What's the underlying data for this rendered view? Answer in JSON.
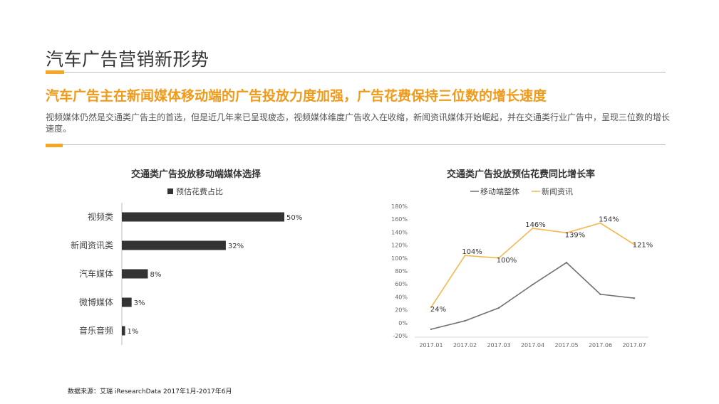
{
  "slide": {
    "title": "汽车广告营销新形势",
    "headline": "汽车广告主在新闻媒体移动端的广告投放力度加强，广告花费保持三位数的增长速度",
    "summary": "视频媒体仍然是交通类广告主的首选，但是近几年来已呈现疲态，视频媒体维度广告收入在收缩，新闻资讯媒体开始崛起，并在交通类行业广告中，呈现三位数的增长速度。",
    "source": "数据来源：艾瑞 iResearchData 2017年1月-2017年6月",
    "accent_color": "#f5a623",
    "headline_color": "#f09a1a"
  },
  "chart_data": [
    {
      "type": "bar",
      "orientation": "horizontal",
      "title": "交通类广告投放移动端媒体选择",
      "legend": "top",
      "categories": [
        "视频类",
        "新闻资讯类",
        "汽车媒体",
        "微博媒体",
        "音乐音频"
      ],
      "series": [
        {
          "name": "预估花费占比",
          "values": [
            50,
            32,
            8,
            3,
            1
          ],
          "labels": [
            "50%",
            "32%",
            "8%",
            "3%",
            "1%"
          ],
          "color": "#333333"
        }
      ],
      "xlim": [
        0,
        50
      ]
    },
    {
      "type": "line",
      "title": "交通类广告投放预估花费同比增长率",
      "legend": "top",
      "categories": [
        "2017.01",
        "2017.02",
        "2017.03",
        "2017.04",
        "2017.05",
        "2017.06",
        "2017.07"
      ],
      "y_ticks": [
        "180%",
        "160%",
        "140%",
        "120%",
        "100%",
        "80%",
        "60%",
        "40%",
        "20%",
        "0%",
        "-20%"
      ],
      "ylim": [
        -20,
        180
      ],
      "grid": false,
      "series": [
        {
          "name": "移动端整体",
          "values": [
            -10,
            3,
            23,
            59,
            93,
            44,
            38
          ],
          "color": "#707070"
        },
        {
          "name": "新闻资讯",
          "values": [
            24,
            104,
            100,
            146,
            139,
            154,
            121
          ],
          "labels": [
            "24%",
            "104%",
            "100%",
            "146%",
            "139%",
            "154%",
            "121%"
          ],
          "color": "#f5b74e"
        }
      ]
    }
  ]
}
